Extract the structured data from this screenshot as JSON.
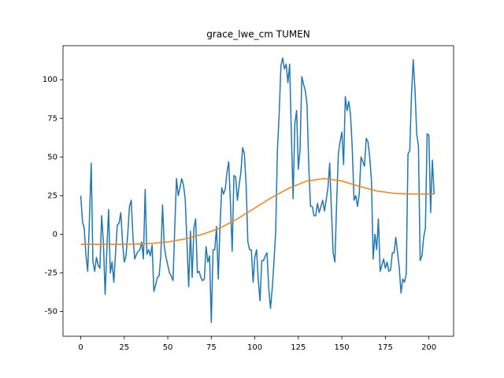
{
  "chart_data": {
    "type": "line",
    "title": "grace_lwe_cm TUMEN",
    "xlim": [
      -10.2,
      214.2
    ],
    "ylim": [
      -66,
      122
    ],
    "xticks": [
      0,
      25,
      50,
      75,
      100,
      125,
      150,
      175,
      200
    ],
    "yticks": [
      -50,
      -25,
      0,
      25,
      50,
      75,
      100
    ],
    "series": [
      {
        "color": "#1f77b4",
        "x": [
          0,
          1,
          2,
          3,
          4,
          5,
          6,
          7,
          8,
          9,
          10,
          11,
          12,
          13,
          14,
          15,
          16,
          17,
          18,
          19,
          20,
          21,
          22,
          23,
          24,
          25,
          26,
          27,
          28,
          29,
          30,
          31,
          32,
          33,
          34,
          35,
          36,
          37,
          38,
          39,
          40,
          41,
          42,
          43,
          44,
          45,
          46,
          47,
          48,
          49,
          50,
          51,
          52,
          53,
          54,
          55,
          56,
          57,
          58,
          59,
          60,
          61,
          62,
          63,
          64,
          65,
          66,
          67,
          68,
          69,
          70,
          71,
          72,
          73,
          74,
          75,
          76,
          77,
          78,
          79,
          80,
          81,
          82,
          83,
          84,
          85,
          86,
          87,
          88,
          89,
          90,
          91,
          92,
          93,
          94,
          95,
          96,
          97,
          98,
          99,
          100,
          101,
          102,
          103,
          104,
          105,
          106,
          107,
          108,
          109,
          110,
          111,
          112,
          113,
          114,
          115,
          116,
          117,
          118,
          119,
          120,
          121,
          122,
          123,
          124,
          125,
          126,
          127,
          128,
          129,
          130,
          131,
          132,
          133,
          134,
          135,
          136,
          137,
          138,
          139,
          140,
          141,
          142,
          143,
          144,
          145,
          146,
          147,
          148,
          149,
          150,
          151,
          152,
          153,
          154,
          155,
          156,
          157,
          158,
          159,
          160,
          161,
          162,
          163,
          164,
          165,
          166,
          167,
          168,
          169,
          170,
          171,
          172,
          173,
          174,
          175,
          176,
          177,
          178,
          179,
          180,
          181,
          182,
          183,
          184,
          185,
          186,
          187,
          188,
          189,
          190,
          191,
          192,
          193,
          194,
          195,
          196,
          197,
          198,
          199,
          200,
          201,
          202,
          203
        ],
        "values": [
          25,
          8,
          4,
          -14,
          -24,
          10,
          46,
          -18,
          -24,
          -15,
          -20,
          -22,
          12,
          -5,
          -39,
          -10,
          16,
          -25,
          -18,
          -31,
          -12,
          6,
          7,
          14,
          -5,
          -18,
          -14,
          0,
          18,
          22,
          -2,
          -16,
          -13,
          -11,
          -10,
          -5,
          -16,
          29,
          -13,
          -10,
          -14,
          -7,
          -37,
          -33,
          -28,
          -27,
          -14,
          19,
          -8,
          -15,
          -20,
          -25,
          -27,
          -30,
          4,
          36,
          25,
          30,
          36,
          32,
          23,
          -5,
          -34,
          2,
          -28,
          4,
          10,
          -25,
          -24,
          -28,
          -30,
          -29,
          -8,
          -18,
          -14,
          -57,
          -10,
          -10,
          5,
          -29,
          5,
          30,
          26,
          29,
          40,
          47,
          20,
          -11,
          38,
          37,
          22,
          32,
          40,
          56,
          52,
          32,
          -5,
          -10,
          -10,
          -31,
          -15,
          -10,
          -30,
          -43,
          -17,
          -17,
          -14,
          -12,
          -35,
          -48,
          -35,
          -18,
          2,
          55,
          78,
          109,
          114,
          107,
          110,
          98,
          110,
          65,
          23,
          72,
          80,
          42,
          55,
          102,
          97,
          93,
          84,
          44,
          18,
          18,
          12,
          12,
          20,
          14,
          18,
          22,
          15,
          22,
          30,
          46,
          16,
          -12,
          -18,
          20,
          52,
          60,
          66,
          45,
          89,
          80,
          86,
          77,
          55,
          22,
          25,
          18,
          26,
          50,
          47,
          44,
          62,
          60,
          50,
          35,
          -16,
          0,
          -10,
          10,
          -24,
          -20,
          -16,
          -22,
          -18,
          -24,
          -23,
          -12,
          -12,
          -2,
          -12,
          -22,
          -38,
          -29,
          -31,
          -26,
          52,
          54,
          90,
          113,
          94,
          65,
          57,
          -17,
          -14,
          -2,
          4,
          65,
          64,
          14,
          48,
          26
        ]
      },
      {
        "color": "#ff7f0e",
        "x": [
          0,
          10,
          20,
          30,
          40,
          50,
          60,
          70,
          80,
          90,
          100,
          110,
          120,
          130,
          140,
          150,
          160,
          170,
          180,
          190,
          200,
          203
        ],
        "values": [
          -6.5,
          -6.5,
          -6.5,
          -6.4,
          -6,
          -5,
          -3,
          0,
          4,
          10,
          17,
          24,
          30,
          34.5,
          36,
          34.5,
          31,
          28,
          26.5,
          26,
          26,
          26
        ]
      }
    ]
  }
}
